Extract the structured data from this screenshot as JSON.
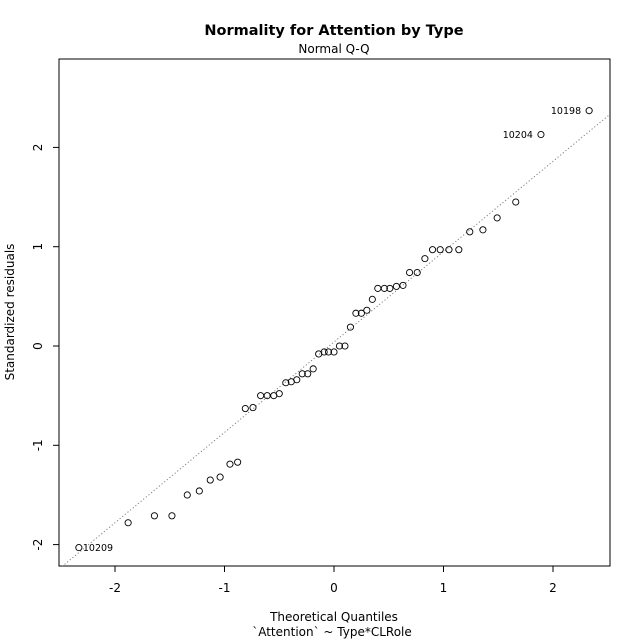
{
  "chart_data": {
    "type": "scatter",
    "title": "Normality for Attention by Type",
    "subtitle": "Normal Q-Q",
    "xlabel": "Theoretical Quantiles",
    "xlabel2": "`Attention` ~ Type*CLRole",
    "ylabel": "Standardized residuals",
    "xlim": [
      -2.5,
      2.5
    ],
    "ylim": [
      -2.22,
      2.9
    ],
    "x_ticks": [
      -2,
      -1,
      0,
      1,
      2
    ],
    "y_ticks": [
      -2,
      -1,
      0,
      1,
      2
    ],
    "x_tick_labels": [
      "-2",
      "-1",
      "0",
      "1",
      "2"
    ],
    "y_tick_labels": [
      "-2",
      "-1",
      "0",
      "1",
      "2"
    ],
    "reference_line": {
      "slope": 0.91,
      "intercept": 0.04,
      "style": "dotted",
      "color": "#808080"
    },
    "points": [
      {
        "x": -2.33,
        "y": -2.03,
        "label": "10209"
      },
      {
        "x": -1.88,
        "y": -1.78
      },
      {
        "x": -1.64,
        "y": -1.71
      },
      {
        "x": -1.48,
        "y": -1.71
      },
      {
        "x": -1.34,
        "y": -1.5
      },
      {
        "x": -1.23,
        "y": -1.46
      },
      {
        "x": -1.13,
        "y": -1.35
      },
      {
        "x": -1.04,
        "y": -1.32
      },
      {
        "x": -0.95,
        "y": -1.19
      },
      {
        "x": -0.88,
        "y": -1.17
      },
      {
        "x": -0.81,
        "y": -0.63
      },
      {
        "x": -0.74,
        "y": -0.62
      },
      {
        "x": -0.67,
        "y": -0.5
      },
      {
        "x": -0.61,
        "y": -0.5
      },
      {
        "x": -0.55,
        "y": -0.5
      },
      {
        "x": -0.5,
        "y": -0.48
      },
      {
        "x": -0.44,
        "y": -0.37
      },
      {
        "x": -0.39,
        "y": -0.36
      },
      {
        "x": -0.34,
        "y": -0.34
      },
      {
        "x": -0.29,
        "y": -0.28
      },
      {
        "x": -0.24,
        "y": -0.28
      },
      {
        "x": -0.19,
        "y": -0.23
      },
      {
        "x": -0.14,
        "y": -0.08
      },
      {
        "x": -0.09,
        "y": -0.06
      },
      {
        "x": -0.05,
        "y": -0.06
      },
      {
        "x": 0.0,
        "y": -0.06
      },
      {
        "x": 0.05,
        "y": 0.0
      },
      {
        "x": 0.1,
        "y": 0.0
      },
      {
        "x": 0.15,
        "y": 0.19
      },
      {
        "x": 0.2,
        "y": 0.33
      },
      {
        "x": 0.25,
        "y": 0.33
      },
      {
        "x": 0.3,
        "y": 0.36
      },
      {
        "x": 0.35,
        "y": 0.47
      },
      {
        "x": 0.4,
        "y": 0.58
      },
      {
        "x": 0.46,
        "y": 0.58
      },
      {
        "x": 0.51,
        "y": 0.58
      },
      {
        "x": 0.57,
        "y": 0.6
      },
      {
        "x": 0.63,
        "y": 0.61
      },
      {
        "x": 0.69,
        "y": 0.74
      },
      {
        "x": 0.76,
        "y": 0.74
      },
      {
        "x": 0.83,
        "y": 0.88
      },
      {
        "x": 0.9,
        "y": 0.97
      },
      {
        "x": 0.97,
        "y": 0.97
      },
      {
        "x": 1.05,
        "y": 0.97
      },
      {
        "x": 1.14,
        "y": 0.97
      },
      {
        "x": 1.24,
        "y": 1.15
      },
      {
        "x": 1.36,
        "y": 1.17
      },
      {
        "x": 1.49,
        "y": 1.29
      },
      {
        "x": 1.66,
        "y": 1.45
      },
      {
        "x": 1.89,
        "y": 2.13,
        "label": "10204"
      },
      {
        "x": 2.33,
        "y": 2.37,
        "label": "10198"
      }
    ],
    "grid": false,
    "marker": "open-circle"
  }
}
